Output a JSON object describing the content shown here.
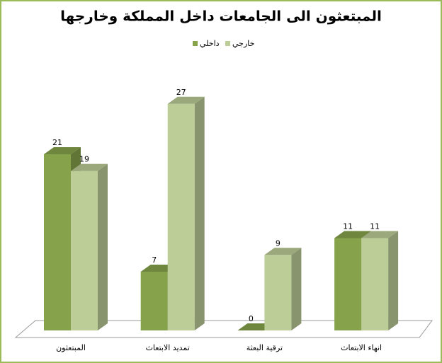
{
  "chart_data": {
    "type": "bar3d",
    "title": "المبتعثون الى الجامعات داخل المملكة وخارجها",
    "categories": [
      "المبتعثون",
      "تمديد الابتعاث",
      "ترقية البعثة",
      "انهاء الابتعاث"
    ],
    "series": [
      {
        "name": "داخلي",
        "color": "#86a34b",
        "values": [
          21,
          7,
          0,
          11
        ]
      },
      {
        "name": "خارجي",
        "color": "#bccd97",
        "values": [
          19,
          27,
          9,
          11
        ]
      }
    ]
  }
}
